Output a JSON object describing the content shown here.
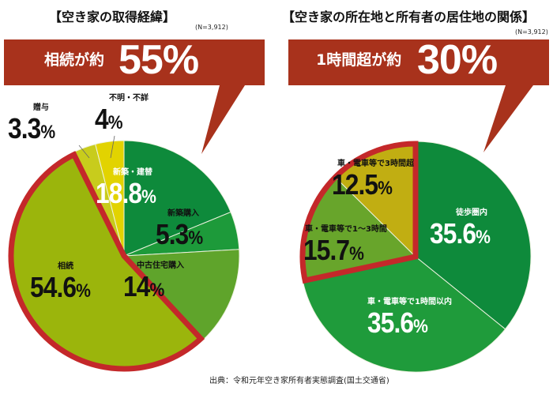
{
  "chart_data": [
    {
      "type": "pie",
      "title": "【空き家の取得経緯】",
      "sample": "(N=3,912)",
      "callout": {
        "text": "相続が約",
        "value": "55%"
      },
      "highlight": "相続",
      "slices": [
        {
          "label": "新築・建替",
          "value": 18.8,
          "color": "#0e8a3b"
        },
        {
          "label": "新築購入",
          "value": 5.3,
          "color": "#1d9a3a"
        },
        {
          "label": "中古住宅購入",
          "value": 14.0,
          "color": "#5fa42b"
        },
        {
          "label": "相続",
          "value": 54.6,
          "color": "#9bb50c"
        },
        {
          "label": "贈与",
          "value": 3.3,
          "color": "#c8cc1c"
        },
        {
          "label": "不明・不詳",
          "value": 4.0,
          "color": "#e2d300"
        }
      ]
    },
    {
      "type": "pie",
      "title": "【空き家の所在地と所有者の居住地の関係】",
      "sample": "(N=3,912)",
      "callout": {
        "text": "1時間超が約",
        "value": "30%"
      },
      "highlight": [
        "車・電車等で1～3時間",
        "車・電車等で3時間超"
      ],
      "slices": [
        {
          "label": "徒歩圏内",
          "value": 35.6,
          "color": "#0e8a3b"
        },
        {
          "label": "車・電車等で1時間以内",
          "value": 35.6,
          "color": "#1f9b3b"
        },
        {
          "label": "車・電車等で1～3時間",
          "value": 15.7,
          "color": "#68a52b"
        },
        {
          "label": "車・電車等で3時間超",
          "value": 12.5,
          "color": "#c1ae12"
        }
      ]
    }
  ],
  "colors": {
    "callout": "#a8321c",
    "highlight_border": "#c4282a"
  },
  "source": "出典：令和元年空き家所有者実態調査(国土交通省)"
}
